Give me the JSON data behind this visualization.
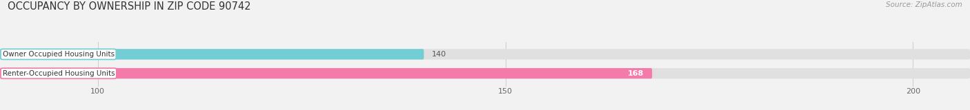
{
  "title": "OCCUPANCY BY OWNERSHIP IN ZIP CODE 90742",
  "source": "Source: ZipAtlas.com",
  "categories": [
    "Owner Occupied Housing Units",
    "Renter-Occupied Housing Units"
  ],
  "values": [
    140,
    168
  ],
  "bar_colors": [
    "#72cdd4",
    "#f47aaa"
  ],
  "xlim_min": 88,
  "xlim_max": 207,
  "xticks": [
    100,
    150,
    200
  ],
  "bar_height": 0.55,
  "background_color": "#f2f2f2",
  "bar_bg_color": "#e0e0e0",
  "title_fontsize": 10.5,
  "source_fontsize": 7.5,
  "label_fontsize": 7.5,
  "value_fontsize": 8,
  "tick_fontsize": 8
}
